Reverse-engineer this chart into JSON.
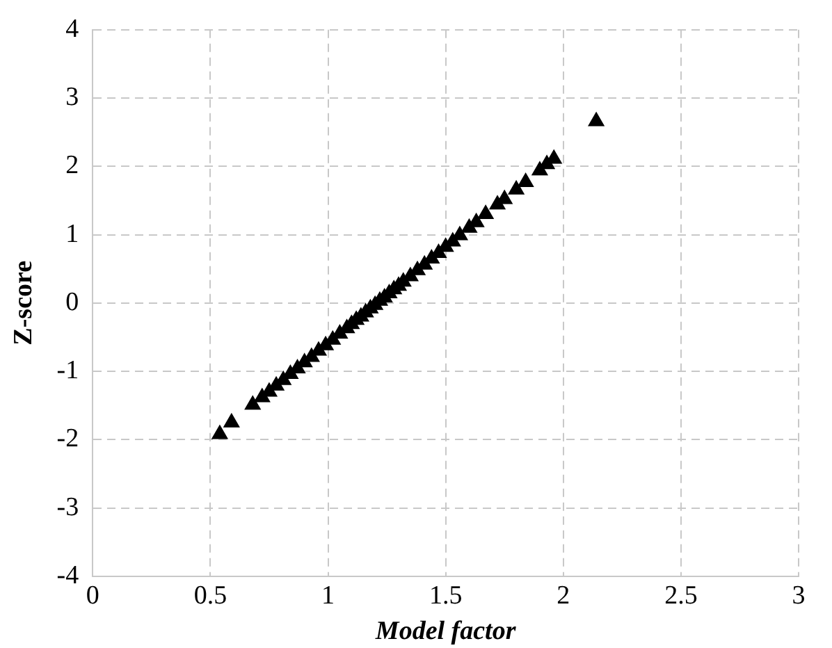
{
  "chart_data": {
    "type": "scatter",
    "xlabel": "Model factor",
    "ylabel": "Z-score",
    "marker": "triangle",
    "grid": true,
    "legend": false,
    "xlim": [
      0,
      3
    ],
    "xticks": [
      0,
      0.5,
      1,
      1.5,
      2,
      2.5,
      3
    ],
    "ylim": [
      -4,
      4
    ],
    "yticks": [
      -4,
      -3,
      -2,
      -1,
      0,
      1,
      2,
      3,
      4
    ],
    "series": [
      {
        "color": "#000000",
        "x": [
          0.54,
          0.59,
          0.68,
          0.72,
          0.75,
          0.78,
          0.81,
          0.84,
          0.87,
          0.9,
          0.93,
          0.96,
          0.99,
          1.02,
          1.05,
          1.08,
          1.1,
          1.12,
          1.14,
          1.16,
          1.18,
          1.2,
          1.22,
          1.24,
          1.26,
          1.28,
          1.3,
          1.32,
          1.35,
          1.38,
          1.41,
          1.44,
          1.47,
          1.5,
          1.53,
          1.56,
          1.6,
          1.63,
          1.67,
          1.72,
          1.75,
          1.8,
          1.84,
          1.9,
          1.93,
          1.96,
          2.14
        ],
        "values": [
          -1.92,
          -1.75,
          -1.49,
          -1.38,
          -1.3,
          -1.21,
          -1.13,
          -1.04,
          -0.96,
          -0.87,
          -0.79,
          -0.7,
          -0.62,
          -0.54,
          -0.45,
          -0.37,
          -0.31,
          -0.25,
          -0.2,
          -0.14,
          -0.08,
          -0.03,
          0.03,
          0.08,
          0.14,
          0.2,
          0.25,
          0.31,
          0.39,
          0.48,
          0.56,
          0.65,
          0.73,
          0.82,
          0.9,
          0.99,
          1.1,
          1.18,
          1.3,
          1.44,
          1.52,
          1.66,
          1.77,
          1.94,
          2.03,
          2.11,
          2.66
        ]
      }
    ]
  }
}
